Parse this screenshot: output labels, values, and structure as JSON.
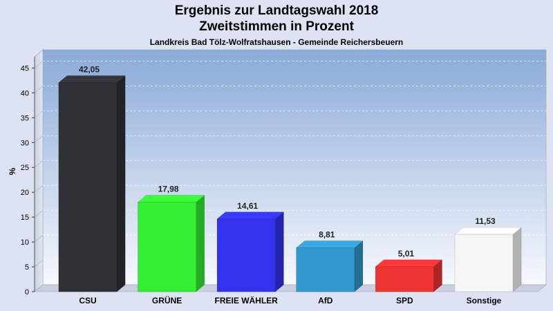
{
  "chart_data": {
    "type": "bar",
    "title": "Ergebnis zur Landtagswahl 2018",
    "subtitle": "Zweitstimmen in Prozent",
    "subsubtitle": "Landkreis Bad Tölz-Wolfratshausen - Gemeinde Reichersbeuern",
    "ylabel": "%",
    "ylim": [
      0,
      47
    ],
    "yticks": [
      "0",
      "5",
      "10",
      "15",
      "20",
      "25",
      "30",
      "35",
      "40",
      "45"
    ],
    "grid": true,
    "categories": [
      "CSU",
      "GRÜNE",
      "FREIE WÄHLER",
      "AfD",
      "SPD",
      "Sonstige"
    ],
    "values": [
      42.05,
      17.98,
      14.61,
      8.81,
      5.01,
      11.53
    ],
    "value_labels": [
      "42,05",
      "17,98",
      "14,61",
      "8,81",
      "5,01",
      "11,53"
    ],
    "colors": [
      "#2f3136",
      "#33ee33",
      "#3333ee",
      "#3399cc",
      "#ee3333",
      "#f6f6f6"
    ]
  }
}
